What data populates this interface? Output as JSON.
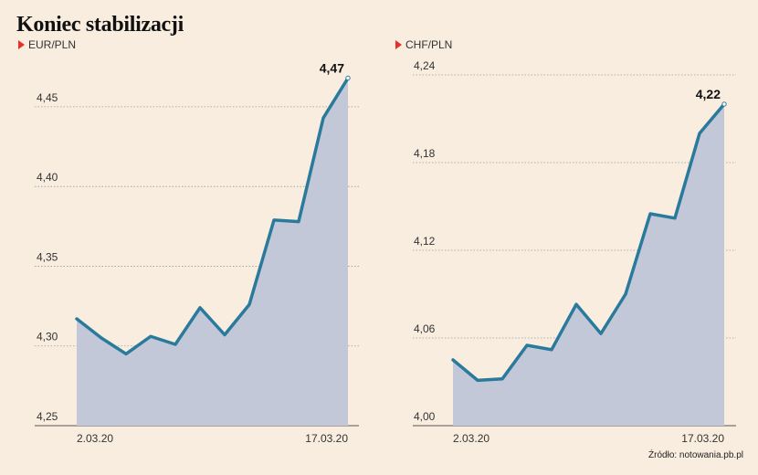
{
  "title": "Koniec stabilizacji",
  "source": "Źródło: notowania.pb.pl",
  "chart_data": [
    {
      "type": "area",
      "series_name": "EUR/PLN",
      "x_labels": [
        "2.03.20",
        "17.03.20"
      ],
      "values": [
        4.317,
        4.305,
        4.295,
        4.306,
        4.301,
        4.324,
        4.307,
        4.326,
        4.379,
        4.378,
        4.443,
        4.468
      ],
      "yticks": [
        "4,25",
        "4,30",
        "4,35",
        "4,40",
        "4,45"
      ],
      "ylim": [
        4.25,
        4.47
      ],
      "end_label": "4,47",
      "line_color": "#2a7a9c",
      "fill_color": "#c3c8d8",
      "grid": true
    },
    {
      "type": "area",
      "series_name": "CHF/PLN",
      "x_labels": [
        "2.03.20",
        "17.03.20"
      ],
      "values": [
        4.045,
        4.031,
        4.032,
        4.055,
        4.052,
        4.083,
        4.063,
        4.09,
        4.145,
        4.142,
        4.2,
        4.22
      ],
      "yticks": [
        "4,00",
        "4,06",
        "4,12",
        "4,18",
        "4,24"
      ],
      "ylim": [
        4.0,
        4.24
      ],
      "end_label": "4,22",
      "line_color": "#2a7a9c",
      "fill_color": "#c3c8d8",
      "grid": true
    }
  ]
}
